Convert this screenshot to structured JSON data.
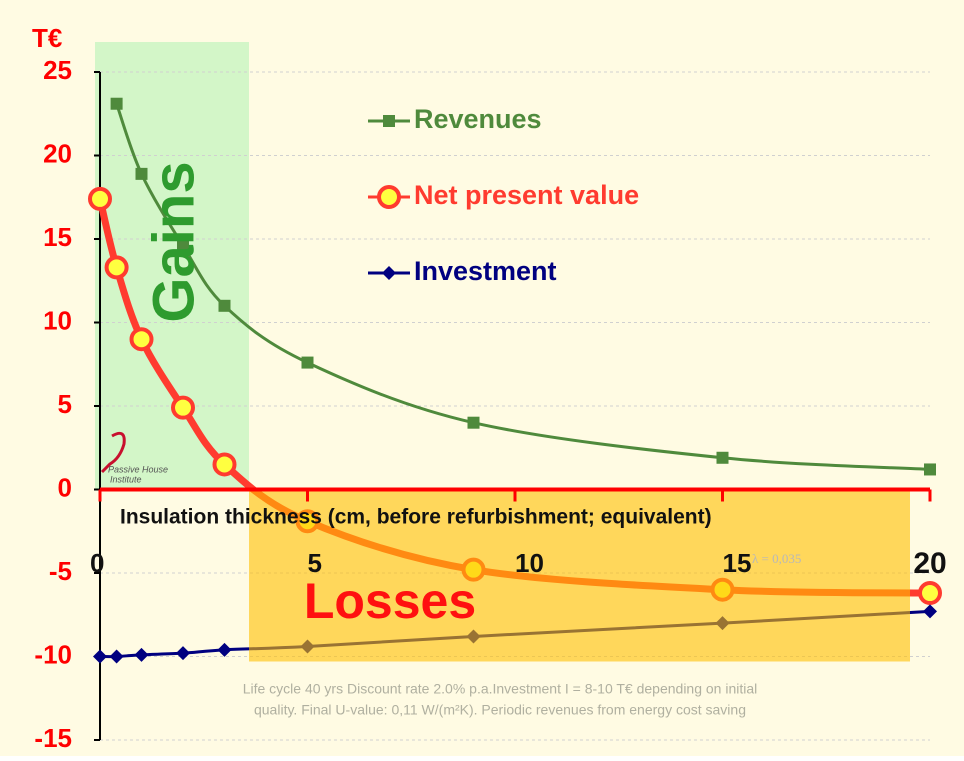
{
  "chart_data": {
    "type": "line",
    "unit_label": "T€",
    "xlabel": "Insulation thickness (cm, before refurbishment; equivalent)",
    "x": [
      0,
      0.4,
      1,
      2,
      3,
      5,
      9,
      15,
      20
    ],
    "series": [
      {
        "name": "Revenues",
        "color": "#4f8a3c",
        "marker": "square",
        "values": [
          null,
          23.1,
          18.9,
          14.6,
          11.0,
          7.6,
          4.0,
          1.9,
          1.2
        ]
      },
      {
        "name": "Net present value",
        "color": "#ff3b2f",
        "marker": "circle",
        "values": [
          17.4,
          13.3,
          9.0,
          4.9,
          1.5,
          -1.9,
          -4.8,
          -6.0,
          -6.2
        ]
      },
      {
        "name": "Investment",
        "color": "#000080",
        "marker": "diamond",
        "values": [
          -10.0,
          -10.0,
          -9.9,
          -9.8,
          -9.6,
          -9.4,
          -8.8,
          -8.0,
          -7.3
        ]
      }
    ],
    "xlim": [
      0,
      20
    ],
    "xticks": [
      0,
      5,
      10,
      15,
      20
    ],
    "ylim": [
      -15,
      25
    ],
    "yticks": [
      25,
      20,
      15,
      10,
      5,
      0,
      -5,
      -10,
      -15
    ],
    "grid": true,
    "annotations": {
      "gains": "Gains",
      "losses": "Losses",
      "lambda": "λ = 0,035",
      "note_line1": "Life cycle 40 yrs  Discount rate 2.0% p.a.Investment I =  8-10 T€ depending on initial",
      "note_line2": "quality. Final U-value: 0,11 W/(m²K).  Periodic revenues from energy cost saving",
      "logo_line1": "Passive House",
      "logo_line2": "Institute"
    }
  }
}
